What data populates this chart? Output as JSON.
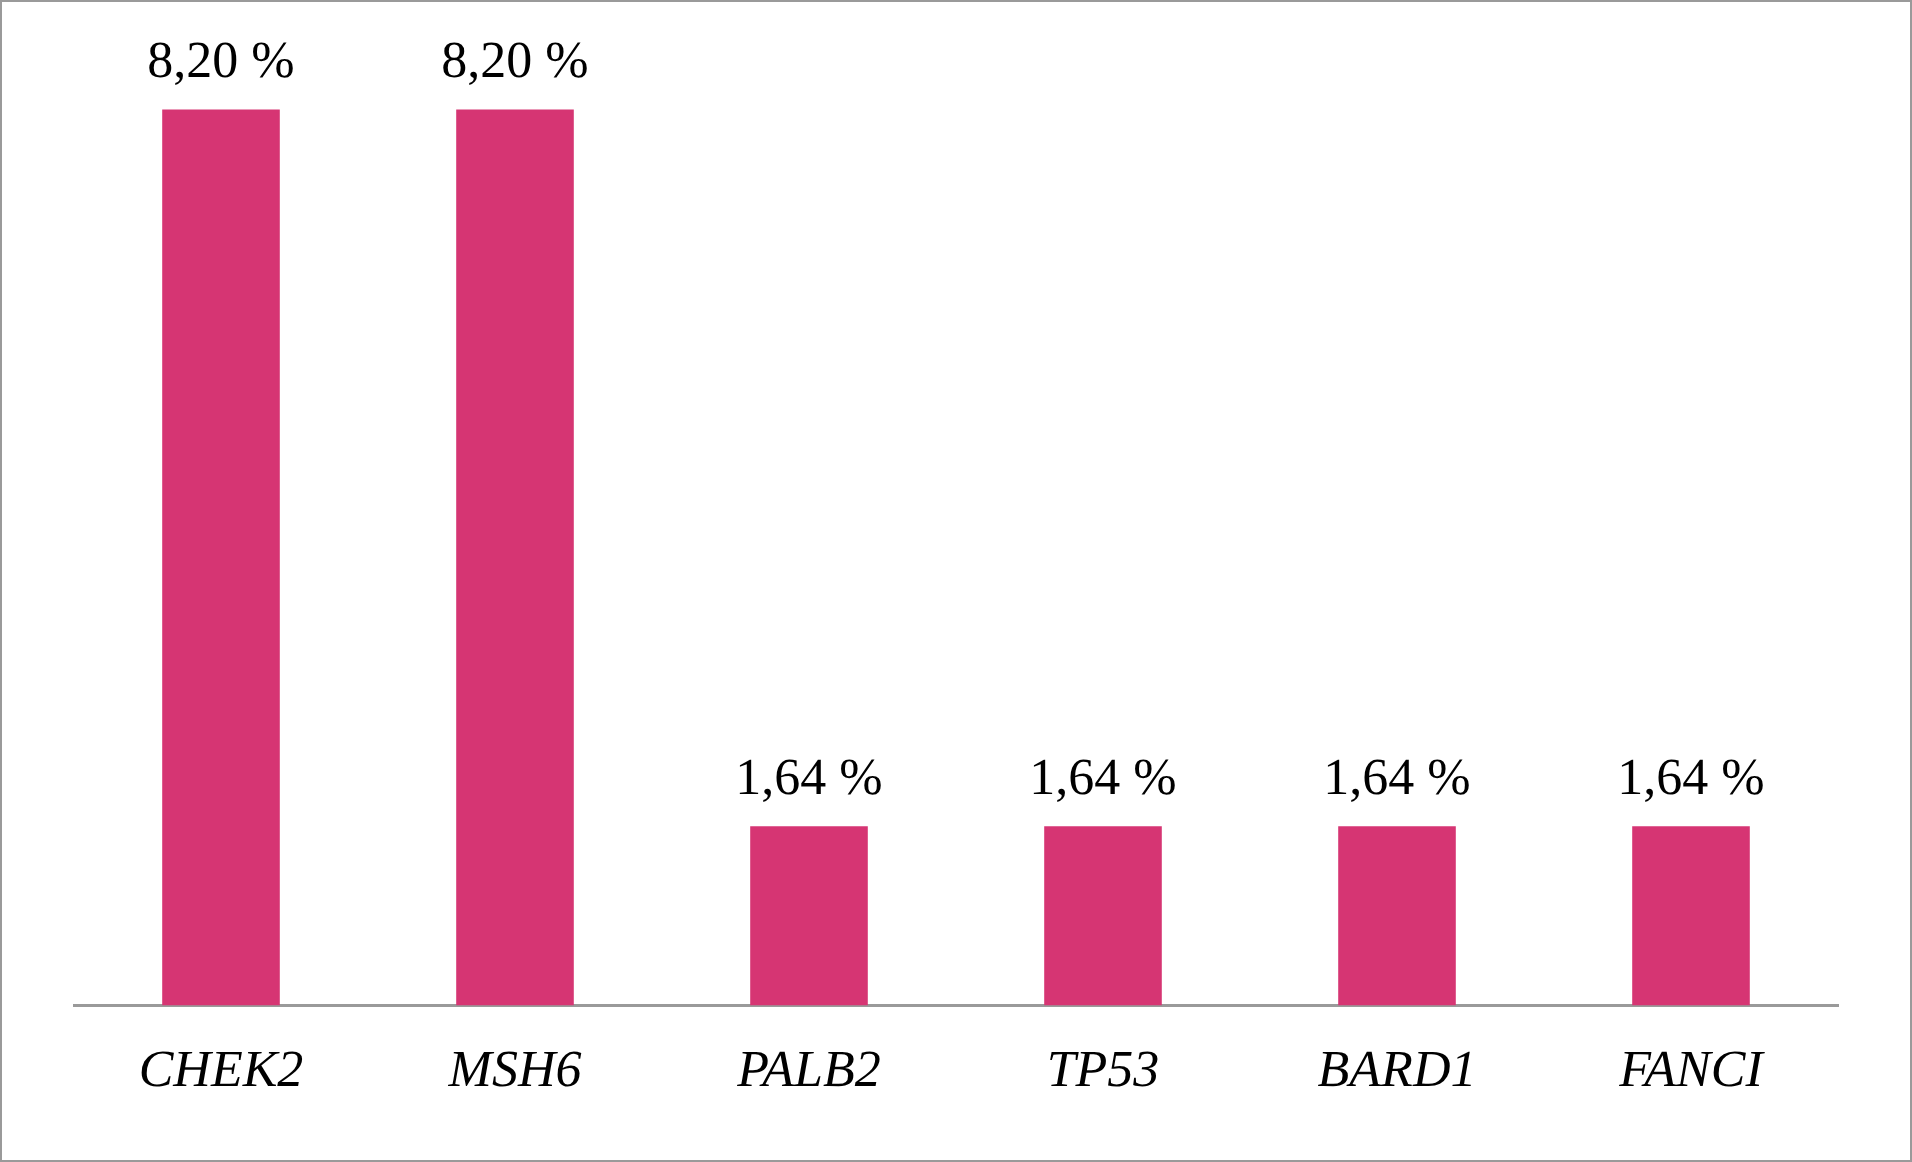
{
  "chart_data": {
    "type": "bar",
    "categories": [
      "CHEK2",
      "MSH6",
      "PALB2",
      "TP53",
      "BARD1",
      "FANCI"
    ],
    "values": [
      8.2,
      8.2,
      1.64,
      1.64,
      1.64,
      1.64
    ],
    "value_labels": [
      "8,20 %",
      "8,20 %",
      "1,64 %",
      "1,64 %",
      "1,64 %",
      "1,64 %"
    ],
    "color": "#d63573",
    "grid": false,
    "legend": false
  }
}
